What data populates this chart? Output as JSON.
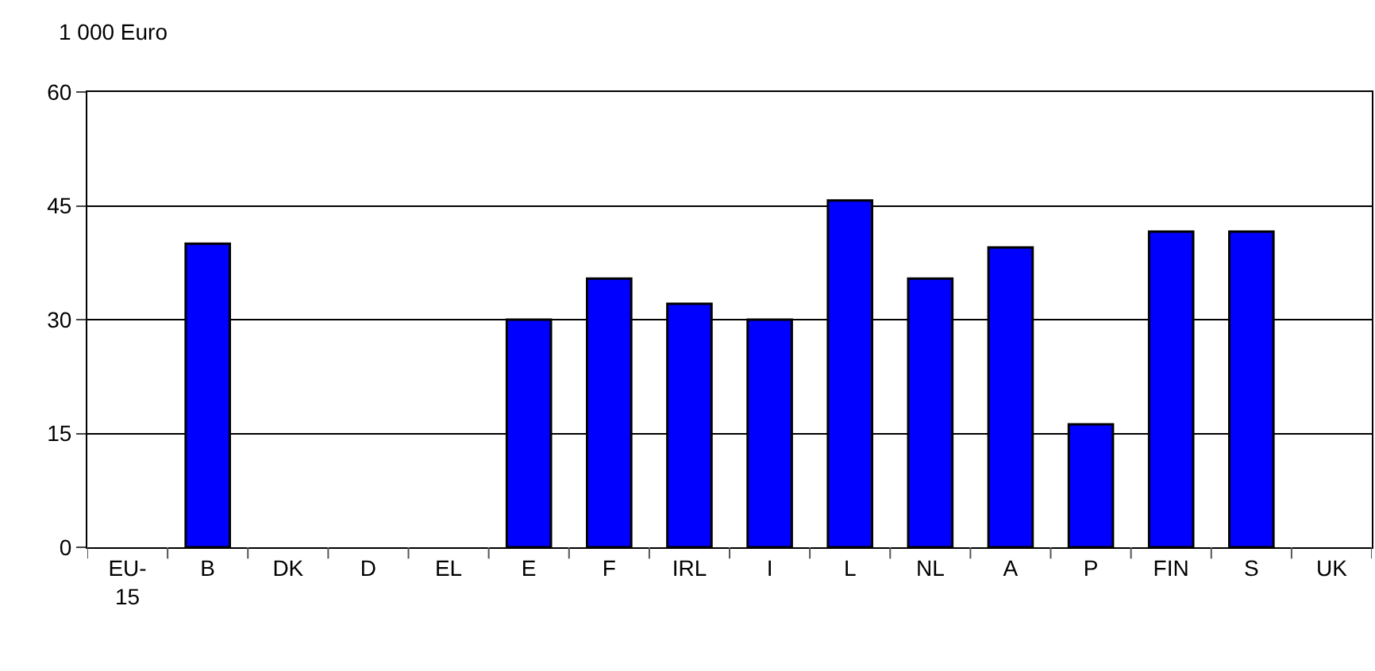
{
  "chart_data": {
    "type": "bar",
    "ylabel": "1 000 Euro",
    "categories": [
      "EU-15",
      "B",
      "DK",
      "D",
      "EL",
      "E",
      "F",
      "IRL",
      "I",
      "L",
      "NL",
      "A",
      "P",
      "FIN",
      "S",
      "UK"
    ],
    "series": [
      {
        "color": "#0000ff",
        "values": [
          null,
          40,
          null,
          null,
          null,
          30,
          35.4,
          32.1,
          30,
          45.7,
          35.4,
          39.5,
          16.2,
          41.6,
          41.6,
          null
        ]
      }
    ],
    "ylim": [
      0,
      60
    ],
    "yticks": [
      0,
      15,
      30,
      45,
      60
    ],
    "grid": "y",
    "legend": false
  }
}
